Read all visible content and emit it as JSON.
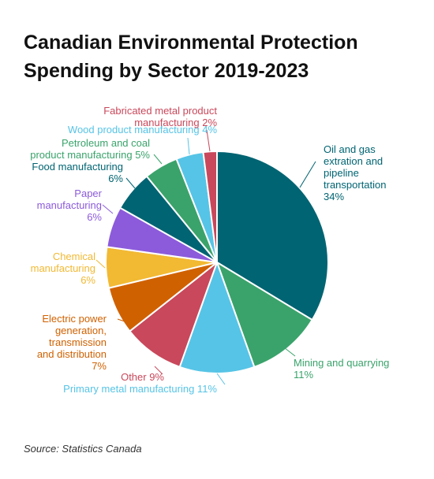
{
  "title_lines": [
    "Canadian Environmental Protection",
    "Spending by Sector 2019-2023"
  ],
  "source": "Source: Statistics Canada",
  "chart_data": {
    "type": "pie",
    "title": "Canadian Environmental Protection Spending by Sector 2019-2023",
    "unit": "%",
    "slices": [
      {
        "label": "Oil and gas extration and pipeline transportation",
        "label_lines": [
          "Oil and gas",
          "extration and",
          "pipeline",
          "transportation",
          "34%"
        ],
        "value": 34,
        "color": "#006472"
      },
      {
        "label": "Mining and quarrying",
        "label_lines": [
          "Mining and quarrying",
          "11%"
        ],
        "value": 11,
        "color": "#3aa36b"
      },
      {
        "label": "Primary metal manufacturing",
        "label_lines": [
          "Primary metal manufacturing 11%"
        ],
        "value": 11,
        "color": "#56c4e6"
      },
      {
        "label": "Other",
        "label_lines": [
          "Other 9%"
        ],
        "value": 9,
        "color": "#c9485b"
      },
      {
        "label": "Electric power generation, transmission and distribution",
        "label_lines": [
          "Electric power",
          "generation,",
          "transmission",
          "and distribution",
          "7%"
        ],
        "value": 7,
        "color": "#d06100"
      },
      {
        "label": "Chemical manufacturing",
        "label_lines": [
          "Chemical",
          "manufacturing",
          "6%"
        ],
        "value": 6,
        "color": "#f2b933"
      },
      {
        "label": "Paper manufacturing",
        "label_lines": [
          "Paper",
          "manufacturing",
          "6%"
        ],
        "value": 6,
        "color": "#8c5bdb"
      },
      {
        "label": "Food manufacturing",
        "label_lines": [
          "Food manufacturing",
          "6%"
        ],
        "value": 6,
        "color": "#006472"
      },
      {
        "label": "Petroleum and coal product manufacturing",
        "label_lines": [
          "Petroleum and coal",
          "product manufacturing 5%"
        ],
        "value": 5,
        "color": "#3aa36b"
      },
      {
        "label": "Wood product manufacturing",
        "label_lines": [
          "Wood product manufacturing 4%"
        ],
        "value": 4,
        "color": "#56c4e6"
      },
      {
        "label": "Fabricated metal product manufacturing",
        "label_lines": [
          "Fabricated metal product",
          "manufacturing 2%"
        ],
        "value": 2,
        "color": "#c9485b"
      }
    ]
  }
}
